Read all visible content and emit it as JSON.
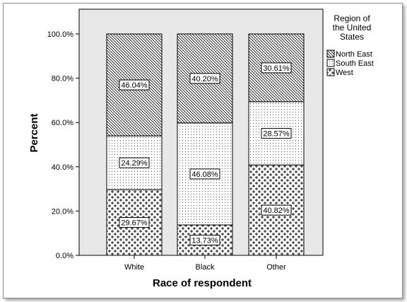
{
  "chart_data": {
    "type": "bar",
    "stacked": true,
    "categories": [
      "White",
      "Black",
      "Other"
    ],
    "series": [
      {
        "name": "West",
        "values": [
          29.67,
          13.73,
          40.82
        ],
        "pattern": "cross"
      },
      {
        "name": "South East",
        "values": [
          24.29,
          46.08,
          28.57
        ],
        "pattern": "dots"
      },
      {
        "name": "North East",
        "values": [
          46.04,
          40.2,
          30.61
        ],
        "pattern": "diag"
      }
    ],
    "data_labels": [
      [
        "29.67%",
        "13.73%",
        "40.82%"
      ],
      [
        "24.29%",
        "46.08%",
        "28.57%"
      ],
      [
        "46.04%",
        "40.20%",
        "30.61%"
      ]
    ],
    "xlabel": "Race of respondent",
    "ylabel": "Percent",
    "ylim": [
      0,
      100
    ],
    "yticks": [
      0,
      20,
      40,
      60,
      80,
      100
    ],
    "ytick_labels": [
      "0.0%",
      "20.0%",
      "40.0%",
      "60.0%",
      "80.0%",
      "100.0%"
    ],
    "legend": {
      "title_lines": [
        "Region of",
        "the United",
        "States"
      ],
      "entries": [
        "North East",
        "South East",
        "West"
      ],
      "placement": "right"
    },
    "plot_background": "#e8e8e8",
    "grid": false
  }
}
